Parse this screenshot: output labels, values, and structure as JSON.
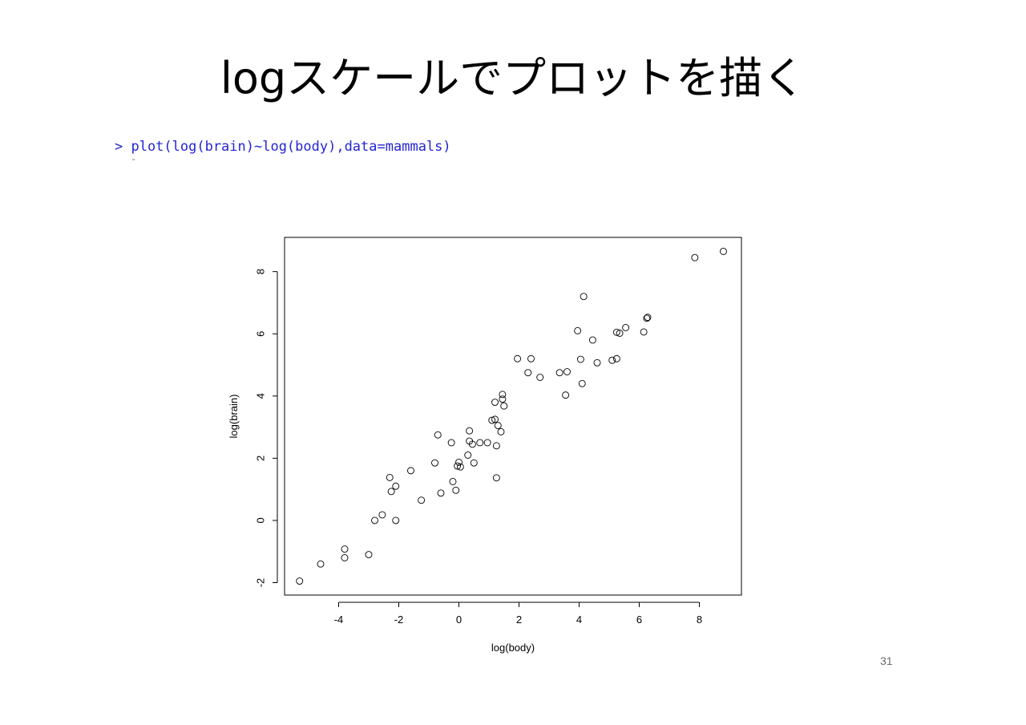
{
  "slide": {
    "title": "logスケールでプロットを描く",
    "command": "> plot(log(brain)~log(body),data=mammals)",
    "page_number": "31"
  },
  "chart_data": {
    "type": "scatter",
    "title": "",
    "xlabel": "log(body)",
    "ylabel": "log(brain)",
    "xlim": [
      -5.8,
      9.4
    ],
    "ylim": [
      -2.4,
      9.1
    ],
    "xticks": [
      -4,
      -2,
      0,
      2,
      4,
      6,
      8
    ],
    "yticks": [
      -2,
      0,
      2,
      4,
      6,
      8
    ],
    "xtick_labels": [
      "-4",
      "-2",
      "0",
      "2",
      "4",
      "6",
      "8"
    ],
    "ytick_labels": [
      "-2",
      "0",
      "2",
      "4",
      "6",
      "8"
    ],
    "marker": "open-circle",
    "grid": false,
    "points": [
      [
        -5.3,
        -1.95
      ],
      [
        -4.6,
        -1.4
      ],
      [
        -3.8,
        -0.92
      ],
      [
        -3.8,
        -1.2
      ],
      [
        -3.0,
        -1.1
      ],
      [
        -2.8,
        0.0
      ],
      [
        -2.55,
        0.18
      ],
      [
        -2.3,
        1.38
      ],
      [
        -2.25,
        0.93
      ],
      [
        -2.1,
        1.1
      ],
      [
        -2.1,
        0.0
      ],
      [
        -1.6,
        1.6
      ],
      [
        -1.25,
        0.65
      ],
      [
        -0.8,
        1.85
      ],
      [
        -0.7,
        2.75
      ],
      [
        -0.6,
        0.88
      ],
      [
        -0.25,
        2.5
      ],
      [
        -0.2,
        1.25
      ],
      [
        -0.1,
        0.97
      ],
      [
        -0.05,
        1.75
      ],
      [
        0.0,
        1.87
      ],
      [
        0.05,
        1.72
      ],
      [
        0.3,
        2.1
      ],
      [
        0.35,
        2.55
      ],
      [
        0.35,
        2.88
      ],
      [
        0.45,
        2.45
      ],
      [
        0.5,
        1.85
      ],
      [
        0.7,
        2.5
      ],
      [
        0.95,
        2.5
      ],
      [
        1.1,
        3.22
      ],
      [
        1.2,
        3.25
      ],
      [
        1.2,
        3.8
      ],
      [
        1.25,
        2.4
      ],
      [
        1.25,
        1.37
      ],
      [
        1.3,
        3.05
      ],
      [
        1.4,
        2.85
      ],
      [
        1.45,
        4.05
      ],
      [
        1.45,
        3.9
      ],
      [
        1.5,
        3.68
      ],
      [
        1.95,
        5.2
      ],
      [
        2.3,
        4.75
      ],
      [
        2.4,
        5.2
      ],
      [
        2.7,
        4.6
      ],
      [
        3.35,
        4.75
      ],
      [
        3.55,
        4.03
      ],
      [
        3.6,
        4.78
      ],
      [
        3.95,
        6.1
      ],
      [
        4.05,
        5.18
      ],
      [
        4.1,
        4.4
      ],
      [
        4.15,
        7.2
      ],
      [
        4.45,
        5.8
      ],
      [
        4.6,
        5.07
      ],
      [
        5.1,
        5.15
      ],
      [
        5.25,
        5.2
      ],
      [
        5.25,
        6.05
      ],
      [
        5.35,
        6.02
      ],
      [
        5.55,
        6.2
      ],
      [
        6.15,
        6.06
      ],
      [
        6.25,
        6.5
      ],
      [
        6.28,
        6.53
      ],
      [
        7.85,
        8.45
      ],
      [
        8.8,
        8.65
      ]
    ]
  }
}
